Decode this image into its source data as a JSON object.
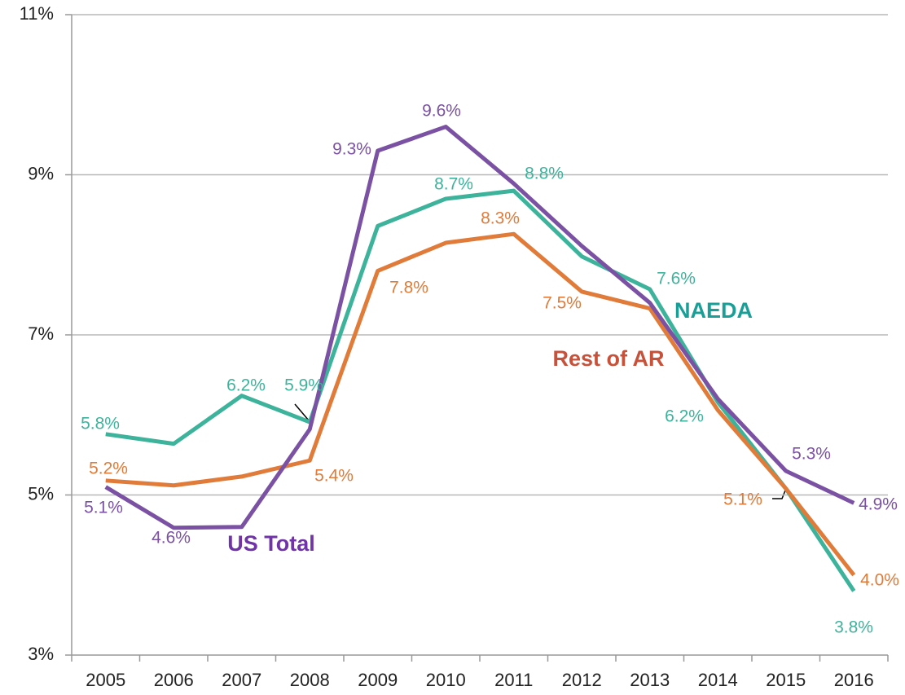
{
  "chart_data": {
    "type": "line",
    "categories": [
      "2005",
      "2006",
      "2007",
      "2008",
      "2009",
      "2010",
      "2011",
      "2012",
      "2013",
      "2014",
      "2015",
      "2016"
    ],
    "ylim": [
      3,
      11
    ],
    "yticks": [
      {
        "value": 3,
        "label": "3%"
      },
      {
        "value": 5,
        "label": "5%"
      },
      {
        "value": 7,
        "label": "7%"
      },
      {
        "value": 9,
        "label": "9%"
      },
      {
        "value": 11,
        "label": "11%"
      }
    ],
    "grid": true,
    "series": [
      {
        "name": "NAEDA",
        "color": "#3db39b",
        "label_color": "#1a9e96",
        "values": [
          5.76,
          5.64,
          6.24,
          5.91,
          8.36,
          8.7,
          8.8,
          7.98,
          7.57,
          6.16,
          5.08,
          3.8
        ],
        "value_labels": [
          "5.8%",
          null,
          "6.2%",
          "5.9%",
          null,
          "8.7%",
          "8.8%",
          null,
          "7.6%",
          "6.2%",
          null,
          "3.8%"
        ]
      },
      {
        "name": "Rest of AR",
        "color": "#e07b39",
        "label_color": "#c8513a",
        "values": [
          5.18,
          5.12,
          5.23,
          5.43,
          7.8,
          8.15,
          8.26,
          7.54,
          7.33,
          6.06,
          5.08,
          4.0
        ],
        "value_labels": [
          "5.2%",
          null,
          null,
          "5.4%",
          "7.8%",
          null,
          "8.3%",
          "7.5%",
          null,
          null,
          "5.1%",
          "4.0%"
        ]
      },
      {
        "name": "US Total",
        "color": "#7b52a3",
        "label_color": "#7034a8",
        "values": [
          5.1,
          4.59,
          4.6,
          5.82,
          9.3,
          9.6,
          8.89,
          8.11,
          7.4,
          6.2,
          5.3,
          4.9
        ],
        "value_labels": [
          "5.1%",
          "4.6%",
          null,
          null,
          "9.3%",
          "9.6%",
          null,
          null,
          null,
          null,
          "5.3%",
          "4.9%"
        ]
      }
    ]
  }
}
